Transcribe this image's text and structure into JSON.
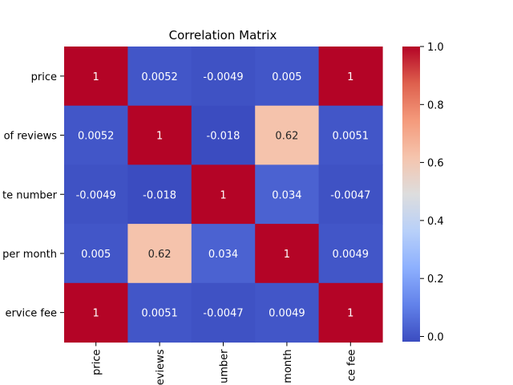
{
  "chart_data": {
    "type": "heatmap",
    "title": "Correlation Matrix",
    "row_labels": [
      "price",
      "of reviews",
      "te number",
      "per month",
      "ervice fee"
    ],
    "col_labels": [
      "price",
      "eviews",
      "umber",
      "month",
      "ce fee"
    ],
    "values": [
      [
        1,
        0.0052,
        -0.0049,
        0.005,
        1
      ],
      [
        0.0052,
        1,
        -0.018,
        0.62,
        0.0051
      ],
      [
        -0.0049,
        -0.018,
        1,
        0.034,
        -0.0047
      ],
      [
        0.005,
        0.62,
        0.034,
        1,
        0.0049
      ],
      [
        1,
        0.0051,
        -0.0047,
        0.0049,
        1
      ]
    ],
    "cell_text": [
      [
        "1",
        "0.0052",
        "-0.0049",
        "0.005",
        "1"
      ],
      [
        "0.0052",
        "1",
        "-0.018",
        "0.62",
        "0.0051"
      ],
      [
        "-0.0049",
        "-0.018",
        "1",
        "0.034",
        "-0.0047"
      ],
      [
        "0.005",
        "0.62",
        "0.034",
        "1",
        "0.0049"
      ],
      [
        "1",
        "0.0051",
        "-0.0047",
        "0.0049",
        "1"
      ]
    ],
    "colormap": "coolwarm",
    "color_range": [
      -0.018,
      1
    ],
    "colorbar_ticks": [
      {
        "value": 0,
        "label": "0.0"
      },
      {
        "value": 0.2,
        "label": "0.2"
      },
      {
        "value": 0.4,
        "label": "0.4"
      },
      {
        "value": 0.6,
        "label": "0.6"
      },
      {
        "value": 0.8,
        "label": "0.8"
      },
      {
        "value": 1,
        "label": "1.0"
      }
    ]
  }
}
